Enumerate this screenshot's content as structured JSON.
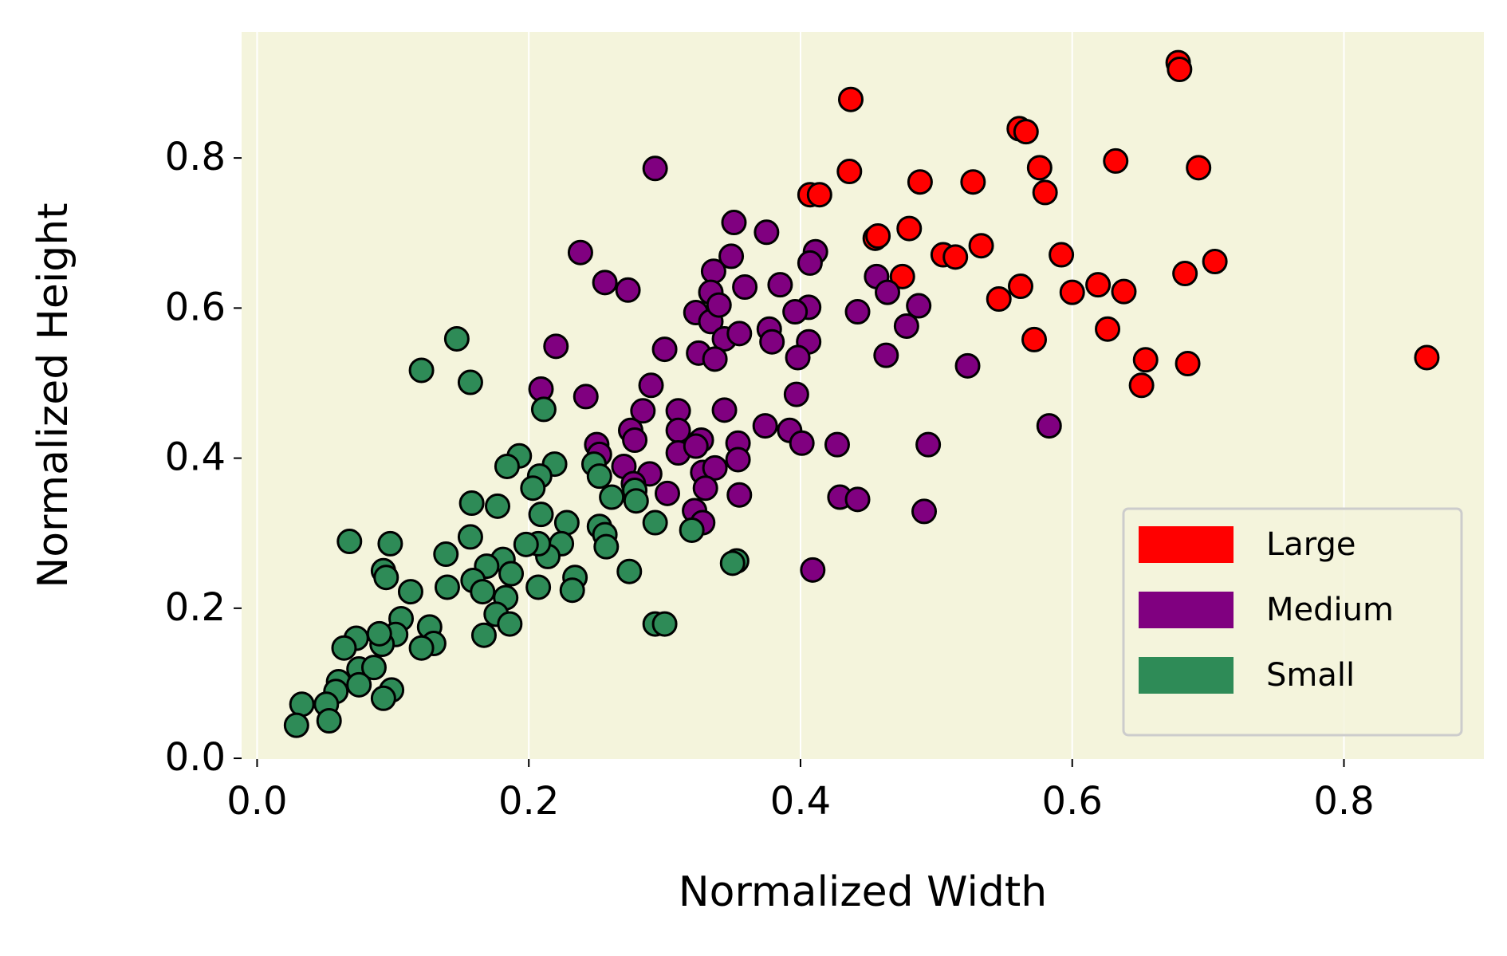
{
  "chart_data": {
    "type": "scatter",
    "xlabel": "Normalized Width",
    "ylabel": "Normalized Height",
    "xlim": [
      -0.0114,
      0.903
    ],
    "ylim": [
      -0.001,
      0.968
    ],
    "xticks": [
      {
        "value": 0,
        "label": "0.0"
      },
      0.2,
      0.4,
      0.6,
      0.8
    ],
    "yticks": [
      {
        "value": 0,
        "label": "0.0"
      },
      0.2,
      0.4,
      0.6,
      0.8
    ],
    "grid": "x",
    "background": "#f4f4dc",
    "edgecolor": "#000000",
    "legend_loc": "lower right",
    "series": [
      {
        "name": "Large",
        "color": "#ff0000",
        "x": [
          0.678,
          0.679,
          0.437,
          0.561,
          0.566,
          0.632,
          0.576,
          0.693,
          0.436,
          0.58,
          0.488,
          0.527,
          0.407,
          0.414,
          0.455,
          0.457,
          0.48,
          0.533,
          0.505,
          0.514,
          0.592,
          0.705,
          0.475,
          0.683,
          0.619,
          0.638,
          0.562,
          0.546,
          0.6,
          0.626,
          0.572,
          0.654,
          0.651,
          0.685,
          0.861
        ],
        "values": [
          0.927,
          0.918,
          0.878,
          0.839,
          0.835,
          0.796,
          0.787,
          0.787,
          0.782,
          0.754,
          0.768,
          0.768,
          0.751,
          0.751,
          0.693,
          0.696,
          0.706,
          0.683,
          0.671,
          0.668,
          0.671,
          0.662,
          0.642,
          0.646,
          0.631,
          0.622,
          0.629,
          0.612,
          0.621,
          0.572,
          0.558,
          0.531,
          0.497,
          0.526,
          0.534
        ]
      },
      {
        "name": "Medium",
        "color": "#800080",
        "x": [
          0.293,
          0.238,
          0.256,
          0.273,
          0.351,
          0.375,
          0.349,
          0.336,
          0.334,
          0.359,
          0.385,
          0.411,
          0.407,
          0.456,
          0.464,
          0.487,
          0.406,
          0.396,
          0.442,
          0.478,
          0.323,
          0.334,
          0.34,
          0.344,
          0.355,
          0.377,
          0.379,
          0.406,
          0.398,
          0.3,
          0.325,
          0.337,
          0.22,
          0.463,
          0.523,
          0.209,
          0.242,
          0.29,
          0.284,
          0.31,
          0.344,
          0.397,
          0.374,
          0.392,
          0.401,
          0.427,
          0.494,
          0.583,
          0.275,
          0.31,
          0.327,
          0.354,
          0.25,
          0.278,
          0.31,
          0.328,
          0.354,
          0.337,
          0.252,
          0.27,
          0.289,
          0.277,
          0.302,
          0.33,
          0.355,
          0.429,
          0.442,
          0.491,
          0.322,
          0.328,
          0.409,
          0.323
        ],
        "values": [
          0.786,
          0.674,
          0.634,
          0.624,
          0.714,
          0.701,
          0.669,
          0.649,
          0.621,
          0.628,
          0.631,
          0.675,
          0.66,
          0.642,
          0.621,
          0.603,
          0.601,
          0.595,
          0.595,
          0.576,
          0.594,
          0.582,
          0.604,
          0.559,
          0.566,
          0.572,
          0.555,
          0.555,
          0.534,
          0.545,
          0.54,
          0.532,
          0.549,
          0.537,
          0.523,
          0.492,
          0.482,
          0.497,
          0.463,
          0.463,
          0.464,
          0.485,
          0.443,
          0.437,
          0.42,
          0.418,
          0.418,
          0.443,
          0.437,
          0.437,
          0.424,
          0.42,
          0.418,
          0.424,
          0.407,
          0.381,
          0.398,
          0.387,
          0.405,
          0.389,
          0.379,
          0.366,
          0.353,
          0.36,
          0.351,
          0.348,
          0.345,
          0.329,
          0.33,
          0.314,
          0.251,
          0.416
        ]
      },
      {
        "name": "Small",
        "color": "#2e8b57",
        "x": [
          0.147,
          0.121,
          0.157,
          0.211,
          0.193,
          0.184,
          0.219,
          0.208,
          0.203,
          0.248,
          0.252,
          0.261,
          0.278,
          0.279,
          0.158,
          0.177,
          0.209,
          0.228,
          0.252,
          0.293,
          0.32,
          0.157,
          0.256,
          0.257,
          0.224,
          0.214,
          0.207,
          0.198,
          0.068,
          0.098,
          0.139,
          0.181,
          0.169,
          0.187,
          0.093,
          0.095,
          0.274,
          0.234,
          0.232,
          0.207,
          0.159,
          0.14,
          0.166,
          0.183,
          0.113,
          0.176,
          0.186,
          0.167,
          0.106,
          0.127,
          0.13,
          0.121,
          0.102,
          0.092,
          0.09,
          0.073,
          0.064,
          0.293,
          0.3,
          0.353,
          0.075,
          0.086,
          0.06,
          0.075,
          0.058,
          0.099,
          0.093,
          0.033,
          0.051,
          0.053,
          0.029,
          0.35
        ],
        "values": [
          0.559,
          0.517,
          0.501,
          0.465,
          0.403,
          0.389,
          0.392,
          0.376,
          0.36,
          0.392,
          0.376,
          0.348,
          0.357,
          0.343,
          0.34,
          0.336,
          0.325,
          0.314,
          0.309,
          0.314,
          0.304,
          0.295,
          0.298,
          0.282,
          0.286,
          0.269,
          0.286,
          0.285,
          0.289,
          0.286,
          0.272,
          0.265,
          0.256,
          0.246,
          0.25,
          0.241,
          0.249,
          0.241,
          0.224,
          0.228,
          0.237,
          0.228,
          0.222,
          0.214,
          0.222,
          0.192,
          0.179,
          0.164,
          0.186,
          0.175,
          0.153,
          0.147,
          0.165,
          0.152,
          0.166,
          0.16,
          0.147,
          0.179,
          0.179,
          0.263,
          0.119,
          0.121,
          0.102,
          0.098,
          0.089,
          0.091,
          0.08,
          0.072,
          0.072,
          0.05,
          0.044,
          0.26
        ]
      }
    ]
  }
}
